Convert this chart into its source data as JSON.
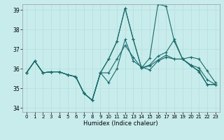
{
  "xlabel": "Humidex (Indice chaleur)",
  "background_color": "#c8ecec",
  "grid_color": "#b8dede",
  "line_color": "#1a6b6b",
  "xlim": [
    -0.5,
    23.5
  ],
  "ylim": [
    33.8,
    39.3
  ],
  "yticks": [
    34,
    35,
    36,
    37,
    38,
    39
  ],
  "xticks": [
    0,
    1,
    2,
    3,
    4,
    5,
    6,
    7,
    8,
    9,
    10,
    11,
    12,
    13,
    14,
    15,
    16,
    17,
    18,
    19,
    20,
    21,
    22,
    23
  ],
  "series": [
    [
      35.8,
      36.4,
      35.8,
      35.85,
      35.85,
      35.7,
      35.6,
      34.75,
      34.4,
      35.8,
      36.5,
      37.4,
      39.1,
      37.5,
      36.05,
      36.55,
      39.3,
      39.2,
      37.4,
      36.5,
      36.2,
      35.85,
      35.2,
      35.2
    ],
    [
      35.8,
      36.4,
      35.8,
      35.85,
      35.85,
      35.7,
      35.6,
      34.75,
      34.4,
      35.8,
      35.3,
      36.0,
      37.5,
      36.4,
      36.1,
      35.95,
      36.4,
      36.6,
      36.5,
      36.5,
      36.2,
      36.05,
      35.45,
      35.2
    ],
    [
      35.8,
      36.4,
      35.8,
      35.85,
      35.85,
      35.7,
      35.6,
      34.75,
      34.4,
      35.8,
      35.8,
      36.5,
      37.2,
      36.6,
      36.05,
      36.15,
      36.45,
      36.7,
      36.5,
      36.5,
      36.6,
      36.5,
      35.9,
      35.3
    ],
    [
      35.8,
      36.4,
      35.8,
      35.85,
      35.85,
      35.7,
      35.6,
      34.75,
      34.4,
      35.8,
      36.5,
      37.4,
      39.1,
      37.5,
      36.05,
      36.2,
      36.65,
      36.85,
      37.5,
      36.5,
      36.15,
      35.9,
      35.2,
      35.2
    ]
  ]
}
